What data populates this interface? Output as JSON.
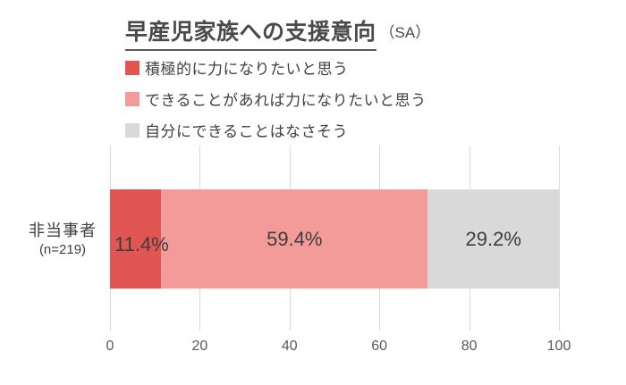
{
  "title": {
    "main": "早産児家族への支援意向",
    "suffix": "（SA）"
  },
  "legend": {
    "items": [
      {
        "label": "積極的に力になりたいと思う",
        "color": "#E15552"
      },
      {
        "label": "できることがあれば力になりたいと思う",
        "color": "#F29B98"
      },
      {
        "label": "自分にできることはなさそう",
        "color": "#D9D9D9"
      }
    ]
  },
  "category": {
    "name": "非当事者",
    "n_label": "(n=219)"
  },
  "chart_data": {
    "type": "bar",
    "orientation": "horizontal-stacked",
    "title": "早産児家族への支援意向（SA）",
    "categories": [
      "非当事者 (n=219)"
    ],
    "series": [
      {
        "name": "積極的に力になりたいと思う",
        "values": [
          11.4
        ],
        "color": "#E15552"
      },
      {
        "name": "できることがあれば力になりたいと思う",
        "values": [
          59.4
        ],
        "color": "#F29B98"
      },
      {
        "name": "自分にできることはなさそう",
        "values": [
          29.2
        ],
        "color": "#D9D9D9"
      }
    ],
    "value_labels": [
      "11.4%",
      "59.4%",
      "29.2%"
    ],
    "xlabel": "",
    "ylabel": "",
    "xlim": [
      0,
      100
    ],
    "xticks": [
      0,
      20,
      40,
      60,
      80,
      100
    ],
    "grid": true,
    "legend_position": "top-left"
  },
  "colors": {
    "grid": "#D9D9D9",
    "title_text": "#4A4A4A",
    "legend_text": "#404040",
    "axis_text": "#595959",
    "value_label_text": "#3D3D3D",
    "background": "#FFFFFF"
  }
}
